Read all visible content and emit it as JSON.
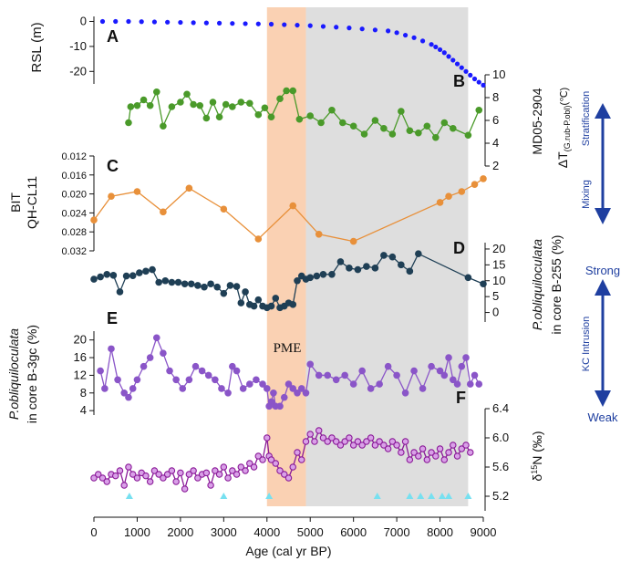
{
  "figure": {
    "x_axis": {
      "label": "Age (cal yr BP)",
      "min": 0,
      "max": 9000,
      "ticks": [
        0,
        1000,
        2000,
        3000,
        4000,
        5000,
        6000,
        7000,
        8000,
        9000
      ]
    },
    "pme_band": {
      "label": "PME",
      "start": 4000,
      "end": 4900,
      "color": "#f9c9a6"
    },
    "grey_band": {
      "start": 4900,
      "end": 8650,
      "color": "#dedede"
    },
    "right_annotations": {
      "stratification": "Stratification",
      "mixing": "Mixing",
      "strong": "Strong",
      "kc_intrusion": "KC Intrusion",
      "weak": "Weak",
      "color": "#1f3fa0"
    },
    "age_control_points": [
      820,
      3000,
      4050,
      6550,
      7300,
      7550,
      7800,
      8050,
      8200,
      8650
    ],
    "marker_color": "#77e0f0"
  },
  "chart_data": [
    {
      "id": "A",
      "type": "scatter",
      "color": "#1a1aff",
      "ylabel": "RSL (m)",
      "ylim": [
        -25,
        2
      ],
      "yticks": [
        0,
        -10,
        -20
      ],
      "axis": "left",
      "x": [
        200,
        500,
        800,
        1100,
        1400,
        1700,
        2000,
        2300,
        2600,
        2900,
        3200,
        3500,
        3800,
        4100,
        4400,
        4700,
        5000,
        5300,
        5600,
        5900,
        6200,
        6500,
        6800,
        7000,
        7200,
        7400,
        7600,
        7800,
        7900,
        8000,
        8100,
        8200,
        8300,
        8400,
        8500,
        8600,
        8700,
        8800,
        8900,
        9000
      ],
      "values": [
        0,
        0,
        0,
        -0.1,
        -0.2,
        -0.3,
        -0.4,
        -0.5,
        -0.6,
        -0.7,
        -0.8,
        -0.9,
        -1.0,
        -1.1,
        -1.3,
        -1.5,
        -1.7,
        -2.0,
        -2.3,
        -2.6,
        -3.0,
        -3.4,
        -3.8,
        -4.5,
        -5.5,
        -6.5,
        -7.8,
        -9.2,
        -10.2,
        -11.3,
        -12.5,
        -14.0,
        -15.5,
        -17.0,
        -18.5,
        -20.0,
        -21.5,
        -23.0,
        -24.3,
        -25.5
      ]
    },
    {
      "id": "B",
      "type": "line",
      "color": "#4a9a2a",
      "ylabel": "MD05-2904",
      "ylabel2": "ΔT",
      "ylabel2_sub": "(G.rub-P.obl)",
      "ylabel2_unit": "(℃)",
      "ylim": [
        2,
        10
      ],
      "yticks": [
        2,
        4,
        6,
        8,
        10
      ],
      "axis": "right",
      "x": [
        800,
        850,
        1000,
        1150,
        1300,
        1450,
        1600,
        1800,
        2000,
        2150,
        2300,
        2450,
        2600,
        2750,
        2900,
        3050,
        3200,
        3400,
        3600,
        3800,
        3950,
        4100,
        4300,
        4450,
        4600,
        4750,
        5000,
        5250,
        5500,
        5750,
        6000,
        6250,
        6500,
        6700,
        6900,
        7100,
        7300,
        7500,
        7700,
        7900,
        8100,
        8300,
        8650,
        8900
      ],
      "values": [
        5.8,
        7.2,
        7.3,
        7.8,
        7.3,
        8.5,
        5.5,
        7.2,
        7.6,
        8.3,
        7.4,
        7.3,
        6.2,
        7.6,
        6.3,
        7.4,
        7.2,
        7.6,
        7.5,
        6.5,
        7.1,
        6.3,
        7.9,
        8.6,
        8.6,
        6.1,
        6.4,
        5.8,
        6.9,
        5.8,
        5.5,
        4.8,
        6.0,
        5.3,
        4.8,
        6.8,
        5.1,
        4.9,
        5.5,
        4.5,
        5.8,
        5.3,
        4.7,
        6.9
      ]
    },
    {
      "id": "C",
      "type": "line",
      "color": "#e8903a",
      "ylabel": "BIT",
      "ylabel2": "QH-CL11",
      "ylim": [
        0.032,
        0.012
      ],
      "yticks": [
        0.012,
        0.016,
        0.02,
        0.024,
        0.028,
        0.032
      ],
      "axis": "left",
      "x": [
        0,
        400,
        1000,
        1600,
        2200,
        3000,
        3800,
        4600,
        5200,
        6000,
        8000,
        8200,
        8500,
        8800,
        9000
      ],
      "values": [
        0.0255,
        0.0205,
        0.0195,
        0.0238,
        0.0188,
        0.0232,
        0.0295,
        0.0225,
        0.0285,
        0.03,
        0.0218,
        0.0205,
        0.0195,
        0.018,
        0.0168
      ]
    },
    {
      "id": "D",
      "type": "line",
      "color": "#1f3f55",
      "ylabel": "P.obliquiloculata",
      "ylabel2": "in core B-255 (%)",
      "ylim": [
        -3,
        22
      ],
      "yticks": [
        0,
        5,
        10,
        15,
        20
      ],
      "axis": "right",
      "x": [
        0,
        150,
        300,
        450,
        600,
        750,
        900,
        1050,
        1200,
        1350,
        1500,
        1650,
        1800,
        1950,
        2100,
        2250,
        2400,
        2550,
        2700,
        2850,
        3000,
        3150,
        3300,
        3400,
        3500,
        3600,
        3700,
        3800,
        3900,
        4000,
        4100,
        4200,
        4300,
        4400,
        4500,
        4600,
        4700,
        4800,
        4900,
        5000,
        5150,
        5300,
        5500,
        5700,
        5900,
        6100,
        6300,
        6500,
        6700,
        6900,
        7100,
        7300,
        7500,
        8650,
        9000
      ],
      "values": [
        10.5,
        11.2,
        12,
        11.7,
        6.5,
        11.5,
        11.6,
        12.5,
        13,
        13.5,
        9.5,
        10,
        9.5,
        9.5,
        9,
        9,
        8.5,
        8,
        9,
        8,
        6,
        8.5,
        8.2,
        3,
        6.5,
        2.5,
        2,
        4,
        2,
        1.5,
        2,
        4.5,
        1.5,
        2,
        3,
        2.5,
        10,
        11.5,
        10.5,
        11,
        11.5,
        12,
        12,
        16,
        14,
        13.5,
        14.5,
        14,
        18,
        17.5,
        15,
        13,
        18.5,
        11,
        9
      ]
    },
    {
      "id": "E",
      "type": "line",
      "color": "#8a55c8",
      "ylabel": "P.obliquiloculata",
      "ylabel2": "in core B-3gc (%)",
      "ylim": [
        3,
        22
      ],
      "yticks": [
        4,
        8,
        12,
        16,
        20
      ],
      "axis": "left",
      "x": [
        150,
        250,
        400,
        550,
        700,
        800,
        900,
        1000,
        1150,
        1300,
        1450,
        1600,
        1750,
        1900,
        2050,
        2200,
        2350,
        2500,
        2650,
        2800,
        2950,
        3100,
        3200,
        3300,
        3450,
        3600,
        3750,
        3900,
        4000,
        4050,
        4100,
        4150,
        4200,
        4300,
        4400,
        4500,
        4600,
        4700,
        4800,
        4900,
        5000,
        5200,
        5400,
        5600,
        5800,
        6000,
        6200,
        6400,
        6600,
        6800,
        7000,
        7200,
        7400,
        7600,
        7800,
        8000,
        8100,
        8200,
        8300,
        8400,
        8500,
        8600,
        8700,
        8800,
        8900
      ],
      "values": [
        13,
        9,
        18,
        11,
        8,
        7,
        9,
        11,
        14,
        16,
        20.5,
        17,
        13,
        11,
        9,
        11,
        14,
        13,
        12,
        11,
        9,
        8,
        14,
        13,
        9,
        10,
        11,
        10,
        9,
        5,
        6,
        8,
        5,
        5,
        7,
        10,
        9,
        8,
        9,
        8,
        14.5,
        12,
        12,
        11,
        12,
        10,
        13,
        9,
        10,
        14,
        12,
        8,
        13,
        9,
        14,
        13,
        12,
        16,
        11,
        10,
        14,
        16,
        10,
        12,
        10
      ]
    },
    {
      "id": "F",
      "type": "line",
      "color": "#8a1a98",
      "ylabel": "δ15N",
      "ylabel_sup": "15",
      "ylabel_unit": "(‰)",
      "ylim": [
        5.0,
        6.4
      ],
      "yticks": [
        5.2,
        5.6,
        6.0,
        6.4
      ],
      "axis": "right",
      "x": [
        0,
        100,
        200,
        300,
        400,
        500,
        600,
        700,
        800,
        900,
        1000,
        1100,
        1200,
        1300,
        1400,
        1500,
        1600,
        1700,
        1800,
        1900,
        2000,
        2100,
        2200,
        2300,
        2400,
        2500,
        2600,
        2700,
        2800,
        2900,
        3000,
        3100,
        3200,
        3300,
        3400,
        3500,
        3600,
        3700,
        3800,
        3900,
        4000,
        4050,
        4100,
        4200,
        4300,
        4400,
        4500,
        4600,
        4700,
        4800,
        4900,
        5000,
        5100,
        5200,
        5300,
        5400,
        5500,
        5600,
        5700,
        5800,
        5900,
        6000,
        6100,
        6200,
        6300,
        6400,
        6500,
        6600,
        6700,
        6800,
        6900,
        7000,
        7100,
        7200,
        7300,
        7400,
        7500,
        7600,
        7700,
        7800,
        7900,
        8000,
        8100,
        8200,
        8300,
        8400,
        8500,
        8600,
        8700
      ],
      "values": [
        5.45,
        5.5,
        5.45,
        5.4,
        5.5,
        5.48,
        5.55,
        5.35,
        5.6,
        5.5,
        5.45,
        5.52,
        5.48,
        5.4,
        5.55,
        5.5,
        5.45,
        5.5,
        5.55,
        5.4,
        5.52,
        5.3,
        5.5,
        5.55,
        5.45,
        5.5,
        5.52,
        5.35,
        5.55,
        5.5,
        5.6,
        5.45,
        5.55,
        5.5,
        5.6,
        5.55,
        5.65,
        5.6,
        5.75,
        5.7,
        6.0,
        5.75,
        5.7,
        5.65,
        5.55,
        5.5,
        5.45,
        5.6,
        5.8,
        5.7,
        5.95,
        6.05,
        5.95,
        6.1,
        6.0,
        5.95,
        6.0,
        5.95,
        5.9,
        5.95,
        6.0,
        5.9,
        5.95,
        5.9,
        5.95,
        6.0,
        5.9,
        5.95,
        5.9,
        5.85,
        5.95,
        5.9,
        5.8,
        5.95,
        5.7,
        5.8,
        5.75,
        5.85,
        5.7,
        5.8,
        5.75,
        5.85,
        5.7,
        5.8,
        5.9,
        5.75,
        5.85,
        5.9,
        5.8
      ]
    }
  ]
}
